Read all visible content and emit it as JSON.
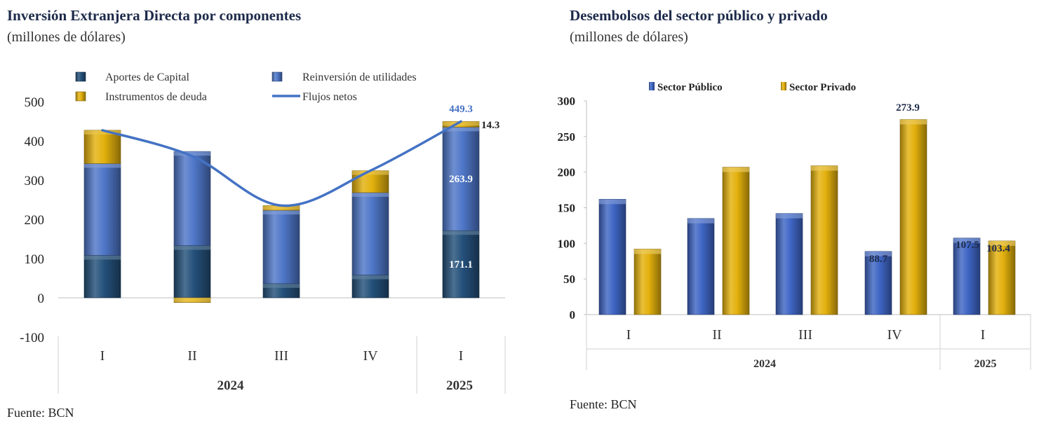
{
  "chart_data": [
    {
      "type": "bar",
      "stacked": true,
      "title": "Inversión Extranjera Directa por componentes",
      "subtitle": "(millones de dólares)",
      "categories": [
        "I",
        "II",
        "III",
        "IV",
        "I"
      ],
      "years": [
        {
          "label": "2024",
          "span": [
            0,
            3
          ]
        },
        {
          "label": "2025",
          "span": [
            4,
            4
          ]
        }
      ],
      "ylim": [
        -100,
        500
      ],
      "yticks": [
        "500",
        "400",
        "300",
        "200",
        "100",
        "0",
        "-100"
      ],
      "ytick_values": [
        500,
        400,
        300,
        200,
        100,
        0,
        -100
      ],
      "series": [
        {
          "name": "Aportes de Capital",
          "color": "#24507a",
          "values": [
            108,
            133,
            36,
            58,
            171.1
          ]
        },
        {
          "name": "Reinversión de utilidades",
          "color": "#4f77c8",
          "values": [
            234,
            240,
            187,
            210,
            263.9
          ]
        },
        {
          "name": "Instrumentos de deuda",
          "color": "#e3b10d",
          "values": [
            85,
            -12,
            12,
            56,
            14.3
          ]
        }
      ],
      "line": {
        "name": "Flujos netos",
        "color": "#4472c4",
        "values": [
          427,
          361,
          235,
          324,
          449.3
        ]
      },
      "data_labels": [
        {
          "text": "449.3",
          "series": "Flujos netos",
          "index": 4
        },
        {
          "text": "14.3",
          "series": "Instrumentos de deuda",
          "index": 4
        },
        {
          "text": "263.9",
          "series": "Reinversión de utilidades",
          "index": 4
        },
        {
          "text": "171.1",
          "series": "Aportes de Capital",
          "index": 4
        }
      ],
      "legend": [
        "Aportes de Capital",
        "Reinversión de utilidades",
        "Instrumentos de deuda",
        "Flujos netos"
      ],
      "legend_position": "top",
      "source": "Fuente: BCN"
    },
    {
      "type": "bar",
      "stacked": false,
      "title": "Desembolsos del sector público y privado",
      "subtitle": "(millones de dólares)",
      "categories": [
        "I",
        "II",
        "III",
        "IV",
        "I"
      ],
      "years": [
        {
          "label": "2024",
          "span": [
            0,
            3
          ]
        },
        {
          "label": "2025",
          "span": [
            4,
            4
          ]
        }
      ],
      "ylim": [
        0,
        300
      ],
      "yticks": [
        "300",
        "250",
        "200",
        "150",
        "100",
        "50",
        "0"
      ],
      "ytick_values": [
        300,
        250,
        200,
        150,
        100,
        50,
        0
      ],
      "series": [
        {
          "name": "Sector Público",
          "color": "#3f66c5",
          "values": [
            162,
            135,
            142,
            88.7,
            107.5
          ]
        },
        {
          "name": "Sector Privado",
          "color": "#e3b10d",
          "values": [
            92,
            207,
            209,
            273.9,
            103.4
          ]
        }
      ],
      "data_labels": [
        {
          "text": "88.7",
          "series": "Sector Público",
          "index": 3
        },
        {
          "text": "273.9",
          "series": "Sector Privado",
          "index": 3
        },
        {
          "text": "107.5",
          "series": "Sector Público",
          "index": 4
        },
        {
          "text": "103.4",
          "series": "Sector Privado",
          "index": 4
        }
      ],
      "legend": [
        "Sector Público",
        "Sector Privado"
      ],
      "legend_position": "top",
      "source": "Fuente: BCN"
    }
  ]
}
